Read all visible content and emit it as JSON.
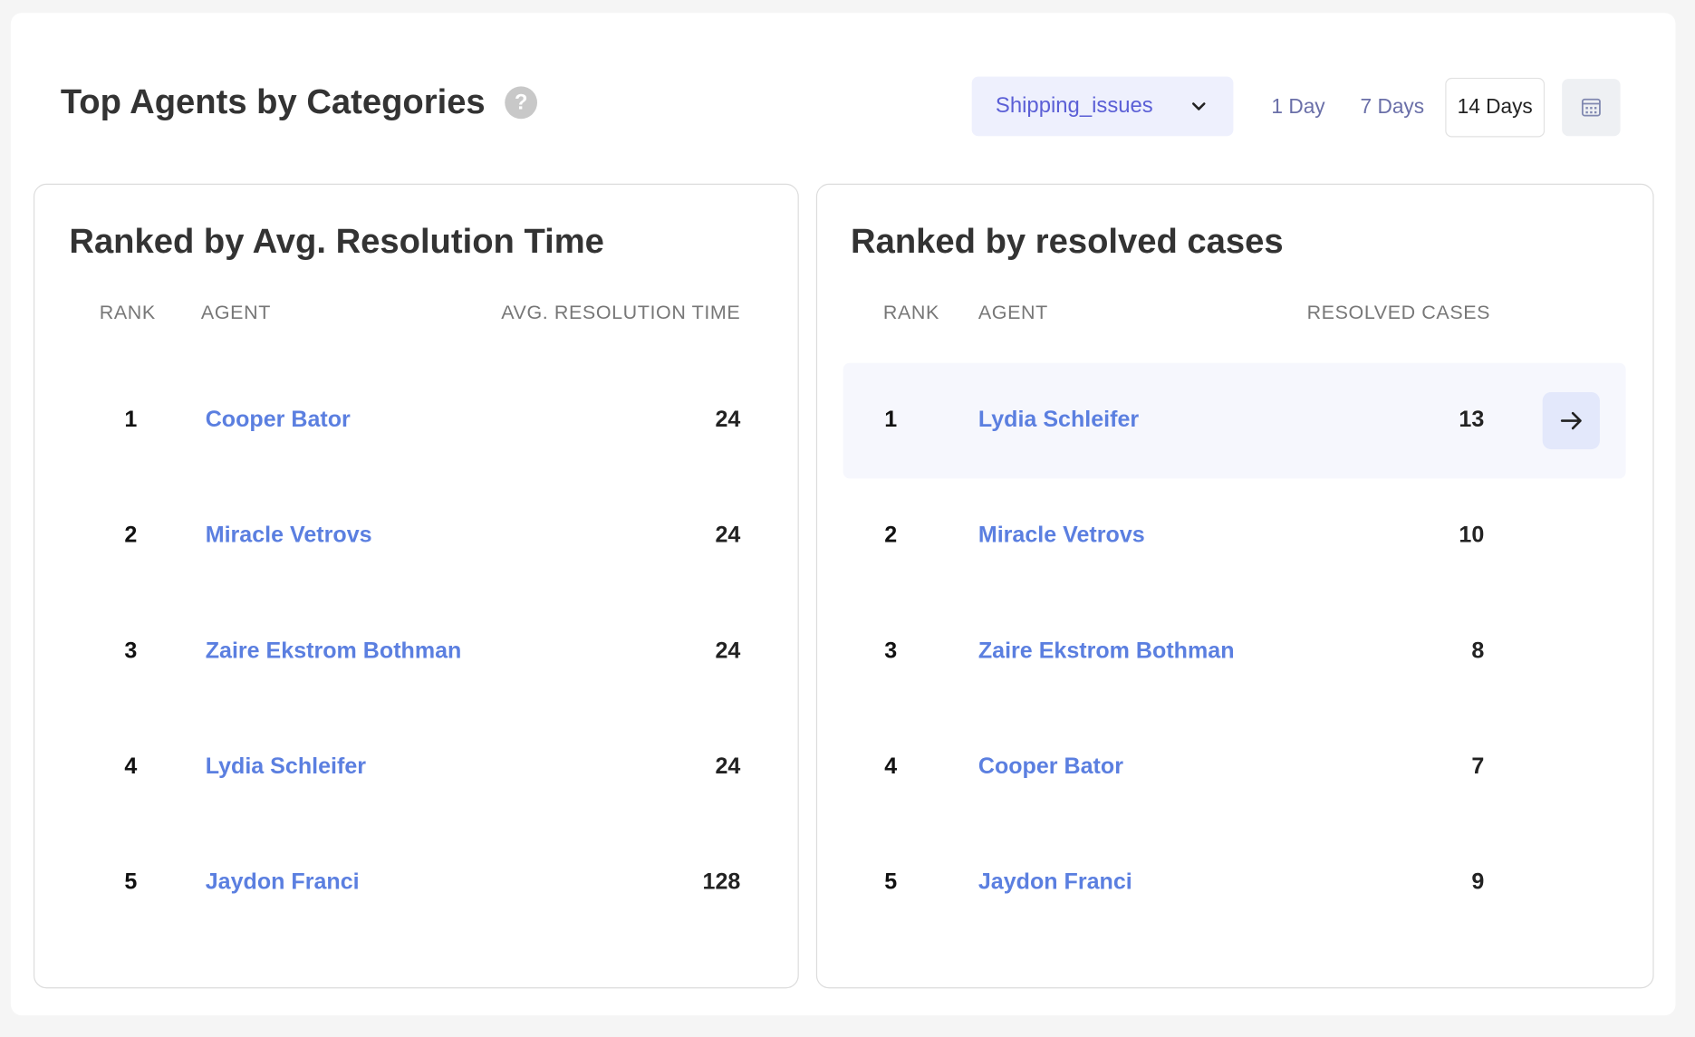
{
  "header": {
    "title": "Top Agents by Categories",
    "help": "?",
    "category": "Shipping_issues",
    "ranges": [
      "1 Day",
      "7 Days",
      "14 Days"
    ]
  },
  "tables": [
    {
      "title": "Ranked by Avg. Resolution Time",
      "columns": [
        "RANK",
        "AGENT",
        "AVG. RESOLUTION TIME"
      ],
      "rows": [
        [
          1,
          "Cooper Bator",
          24
        ],
        [
          2,
          "Miracle Vetrovs",
          24
        ],
        [
          3,
          "Zaire Ekstrom Bothman",
          24
        ],
        [
          4,
          "Lydia Schleifer",
          24
        ],
        [
          5,
          "Jaydon Franci",
          128
        ]
      ]
    },
    {
      "title": "Ranked by resolved cases",
      "columns": [
        "RANK",
        "AGENT",
        "RESOLVED CASES"
      ],
      "rows": [
        [
          1,
          "Lydia Schleifer",
          13
        ],
        [
          2,
          "Miracle Vetrovs",
          10
        ],
        [
          3,
          "Zaire Ekstrom Bothman",
          8
        ],
        [
          4,
          "Cooper Bator",
          7
        ],
        [
          5,
          "Jaydon Franci",
          9
        ]
      ]
    }
  ]
}
